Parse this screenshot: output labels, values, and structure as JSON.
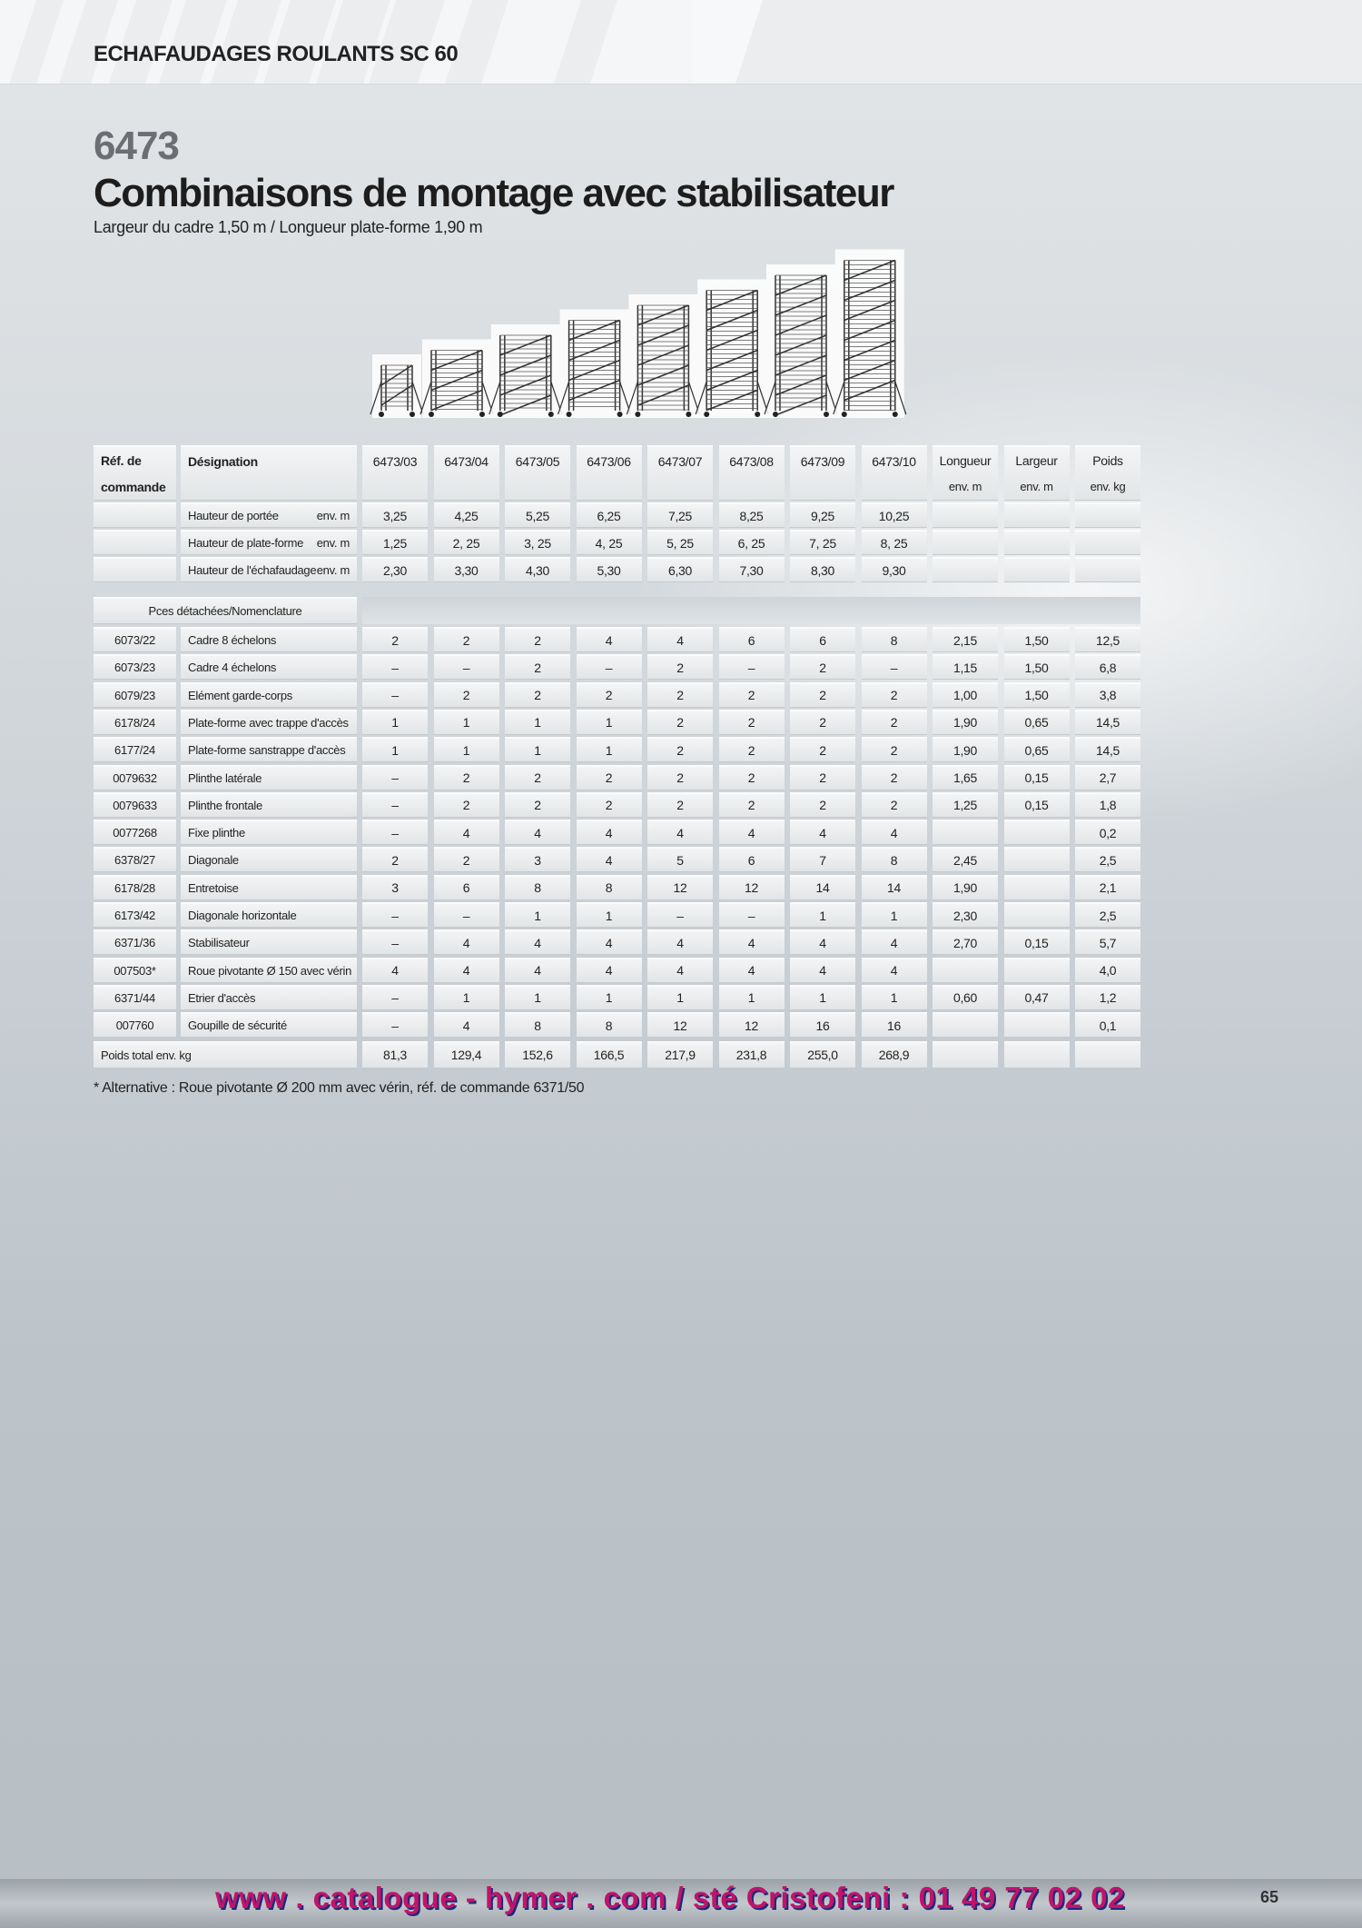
{
  "header": {
    "section_title": "ECHAFAUDAGES ROULANTS SC 60"
  },
  "product": {
    "code": "6473",
    "title": "Combinaisons de montage avec stabilisateur",
    "subtitle": "Largeur du cadre 1,50 m / Longueur plate-forme 1,90 m"
  },
  "table": {
    "header": {
      "ref": [
        "Réf. de",
        "commande"
      ],
      "designation": "Désignation",
      "models": [
        "6473/03",
        "6473/04",
        "6473/05",
        "6473/06",
        "6473/07",
        "6473/08",
        "6473/09",
        "6473/10"
      ],
      "extras": [
        {
          "label": "Longueur",
          "unit": "env. m"
        },
        {
          "label": "Largeur",
          "unit": "env. m"
        },
        {
          "label": "Poids",
          "unit": "env. kg"
        }
      ]
    },
    "height_rows": [
      {
        "label": "Hauteur de portée",
        "unit": "env. m",
        "values": [
          "3,25",
          "4,25",
          "5,25",
          "6,25",
          "7,25",
          "8,25",
          "9,25",
          "10,25"
        ]
      },
      {
        "label": "Hauteur de plate-forme",
        "unit": "env. m",
        "values": [
          "1,25",
          "2, 25",
          "3, 25",
          "4, 25",
          "5, 25",
          "6, 25",
          "7, 25",
          "8, 25"
        ]
      },
      {
        "label": "Hauteur de l'échafaudage",
        "unit": "env. m",
        "values": [
          "2,30",
          "3,30",
          "4,30",
          "5,30",
          "6,30",
          "7,30",
          "8,30",
          "9,30"
        ]
      }
    ],
    "parts_header": "Pces détachées/Nomenclature",
    "parts": [
      {
        "ref": "6073/22",
        "name": "Cadre 8 échelons",
        "values": [
          "2",
          "2",
          "2",
          "4",
          "4",
          "6",
          "6",
          "8"
        ],
        "extras": [
          "2,15",
          "1,50",
          "12,5"
        ]
      },
      {
        "ref": "6073/23",
        "name": "Cadre 4 échelons",
        "values": [
          "–",
          "–",
          "2",
          "–",
          "2",
          "–",
          "2",
          "–"
        ],
        "extras": [
          "1,15",
          "1,50",
          "6,8"
        ]
      },
      {
        "ref": "6079/23",
        "name": "Elément garde-corps",
        "values": [
          "–",
          "2",
          "2",
          "2",
          "2",
          "2",
          "2",
          "2"
        ],
        "extras": [
          "1,00",
          "1,50",
          "3,8"
        ]
      },
      {
        "ref": "6178/24",
        "name": "Plate-forme avec trappe d'accès",
        "values": [
          "1",
          "1",
          "1",
          "1",
          "2",
          "2",
          "2",
          "2"
        ],
        "extras": [
          "1,90",
          "0,65",
          "14,5"
        ]
      },
      {
        "ref": "6177/24",
        "name": "Plate-forme sanstrappe d'accès",
        "values": [
          "1",
          "1",
          "1",
          "1",
          "2",
          "2",
          "2",
          "2"
        ],
        "extras": [
          "1,90",
          "0,65",
          "14,5"
        ]
      },
      {
        "ref": "0079632",
        "name": "Plinthe latérale",
        "values": [
          "–",
          "2",
          "2",
          "2",
          "2",
          "2",
          "2",
          "2"
        ],
        "extras": [
          "1,65",
          "0,15",
          "2,7"
        ]
      },
      {
        "ref": "0079633",
        "name": "Plinthe frontale",
        "values": [
          "–",
          "2",
          "2",
          "2",
          "2",
          "2",
          "2",
          "2"
        ],
        "extras": [
          "1,25",
          "0,15",
          "1,8"
        ]
      },
      {
        "ref": "0077268",
        "name": "Fixe plinthe",
        "values": [
          "–",
          "4",
          "4",
          "4",
          "4",
          "4",
          "4",
          "4"
        ],
        "extras": [
          null,
          null,
          "0,2"
        ]
      },
      {
        "ref": "6378/27",
        "name": "Diagonale",
        "values": [
          "2",
          "2",
          "3",
          "4",
          "5",
          "6",
          "7",
          "8"
        ],
        "extras": [
          "2,45",
          null,
          "2,5"
        ]
      },
      {
        "ref": "6178/28",
        "name": "Entretoise",
        "values": [
          "3",
          "6",
          "8",
          "8",
          "12",
          "12",
          "14",
          "14"
        ],
        "extras": [
          "1,90",
          null,
          "2,1"
        ]
      },
      {
        "ref": "6173/42",
        "name": "Diagonale horizontale",
        "values": [
          "–",
          "–",
          "1",
          "1",
          "–",
          "–",
          "1",
          "1"
        ],
        "extras": [
          "2,30",
          null,
          "2,5"
        ]
      },
      {
        "ref": "6371/36",
        "name": "Stabilisateur",
        "values": [
          "–",
          "4",
          "4",
          "4",
          "4",
          "4",
          "4",
          "4"
        ],
        "extras": [
          "2,70",
          "0,15",
          "5,7"
        ]
      },
      {
        "ref": "007503*",
        "name": "Roue pivotante Ø 150 avec vérin",
        "values": [
          "4",
          "4",
          "4",
          "4",
          "4",
          "4",
          "4",
          "4"
        ],
        "extras": [
          null,
          null,
          "4,0"
        ]
      },
      {
        "ref": "6371/44",
        "name": "Etrier d'accès",
        "values": [
          "–",
          "1",
          "1",
          "1",
          "1",
          "1",
          "1",
          "1"
        ],
        "extras": [
          "0,60",
          "0,47",
          "1,2"
        ]
      },
      {
        "ref": "007760",
        "name": "Goupille de sécurité",
        "values": [
          "–",
          "4",
          "8",
          "8",
          "12",
          "12",
          "16",
          "16"
        ],
        "extras": [
          null,
          null,
          "0,1"
        ]
      }
    ],
    "total": {
      "label": "Poids total env. kg",
      "values": [
        "81,3",
        "129,4",
        "152,6",
        "166,5",
        "217,9",
        "231,8",
        "255,0",
        "268,9"
      ]
    }
  },
  "footnote": "* Alternative : Roue pivotante Ø 200 mm avec vérin, réf. de commande 6371/50",
  "footer": {
    "url": "www . catalogue - hymer . com / sté Cristofeni : 01 49 77 02 02",
    "page": "65"
  }
}
